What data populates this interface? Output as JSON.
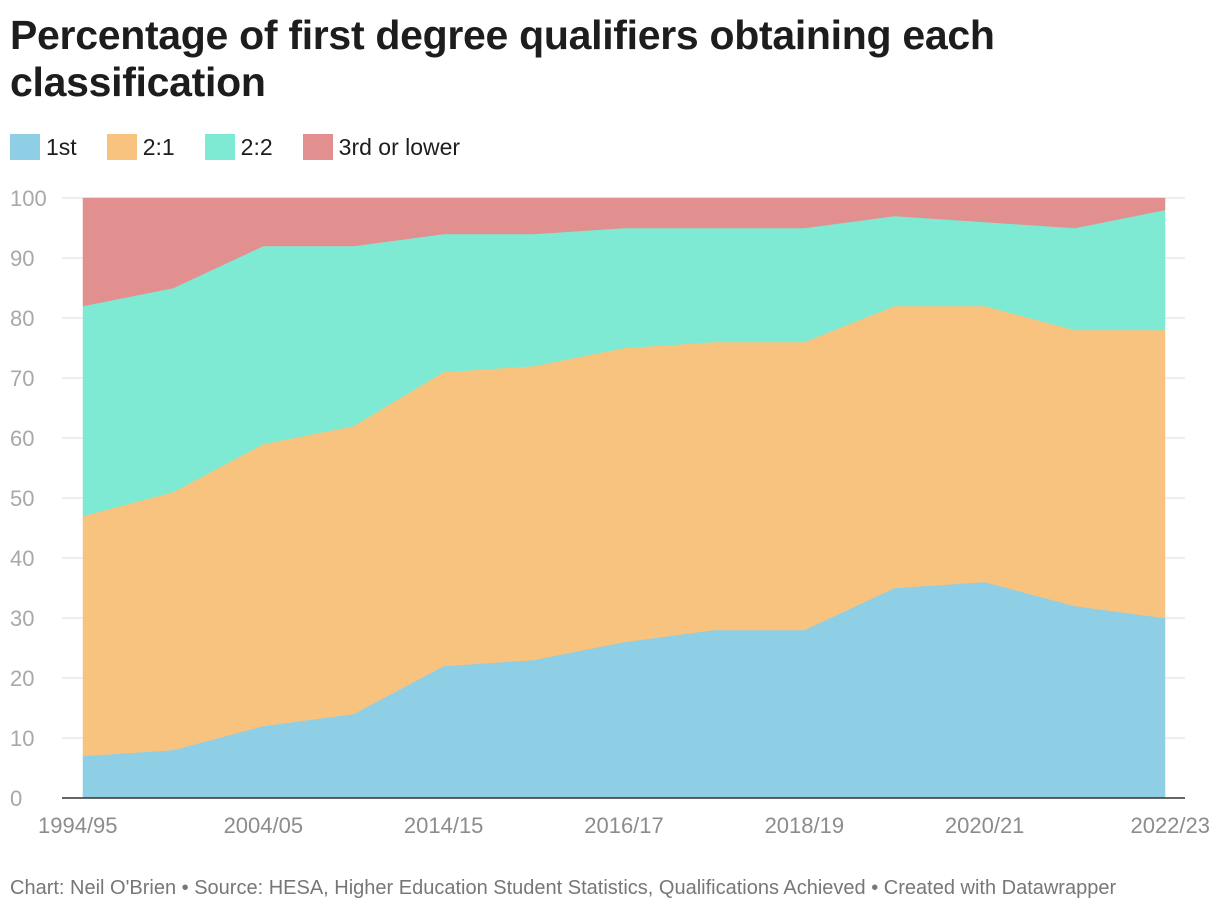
{
  "chart_data": {
    "type": "area",
    "stacked": true,
    "title": "Percentage of first degree qualifiers obtaining each classification",
    "xlabel": "",
    "ylabel": "",
    "ylim": [
      0,
      100
    ],
    "yticks": [
      0,
      10,
      20,
      30,
      40,
      50,
      60,
      70,
      80,
      90,
      100
    ],
    "x_index": [
      0,
      1,
      2,
      3,
      4,
      5,
      6,
      7,
      8,
      9,
      10,
      11,
      12
    ],
    "x_tick_labels": [
      {
        "index": 0,
        "label": "1994/95"
      },
      {
        "index": 2,
        "label": "2004/05"
      },
      {
        "index": 4,
        "label": "2014/15"
      },
      {
        "index": 6,
        "label": "2016/17"
      },
      {
        "index": 8,
        "label": "2018/19"
      },
      {
        "index": 10,
        "label": "2020/21"
      },
      {
        "index": 12,
        "label": "2022/23"
      }
    ],
    "series": [
      {
        "name": "1st",
        "color": "#8ecfe6",
        "values": [
          7,
          8,
          12,
          14,
          22,
          23,
          26,
          28,
          28,
          35,
          36,
          32,
          30
        ]
      },
      {
        "name": "2:1",
        "color": "#f8c37f",
        "values": [
          40,
          43,
          47,
          48,
          49,
          49,
          49,
          48,
          48,
          47,
          46,
          46,
          48
        ]
      },
      {
        "name": "2:2",
        "color": "#7eead3",
        "values": [
          35,
          34,
          33,
          30,
          23,
          22,
          20,
          19,
          19,
          15,
          14,
          17,
          20
        ]
      },
      {
        "name": "3rd or lower",
        "color": "#e28f8f",
        "values": [
          18,
          15,
          8,
          8,
          6,
          6,
          5,
          5,
          5,
          3,
          4,
          5,
          2
        ]
      }
    ],
    "legend": "top-left"
  },
  "footer": "Chart: Neil O'Brien • Source: HESA, Higher Education Student Statistics, Qualifications Achieved • Created with Datawrapper"
}
